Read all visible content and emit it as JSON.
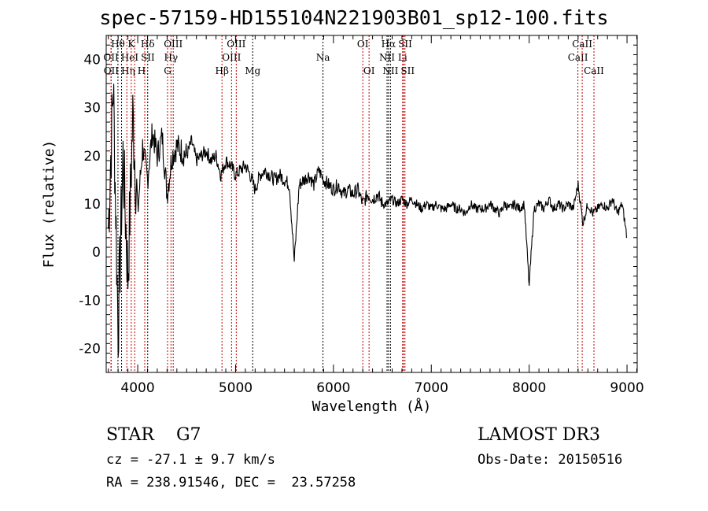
{
  "chart_data": {
    "type": "line",
    "title": "spec-57159-HD155104N221903B01_sp12-100.fits",
    "xlabel": "Wavelength (Å)",
    "ylabel": "Flux (relative)",
    "xlim": [
      3678,
      9104
    ],
    "ylim": [
      -25,
      45
    ],
    "xticks": [
      4000,
      5000,
      6000,
      7000,
      8000,
      9000
    ],
    "yticks": [
      -20,
      -10,
      0,
      10,
      20,
      30,
      40
    ],
    "grid": false,
    "series": [
      {
        "name": "spectrum",
        "x_start": 3700,
        "x_step": 50,
        "values": [
          5,
          35,
          -16,
          20,
          -5,
          28,
          8,
          22,
          15,
          25,
          20,
          24,
          12,
          20,
          22,
          21,
          20,
          23,
          19,
          20,
          21,
          19,
          20,
          16,
          19,
          18,
          16,
          17,
          18,
          16,
          13,
          16,
          17,
          16,
          15,
          16,
          15,
          14,
          -2,
          14,
          15,
          16,
          14,
          17,
          15,
          14,
          13,
          14,
          12,
          13,
          12,
          13,
          10,
          12,
          11,
          12,
          10,
          10,
          11,
          10,
          11,
          10,
          11,
          10,
          9,
          10,
          9,
          10,
          9,
          9,
          10,
          9,
          9,
          8,
          10,
          9,
          9,
          9,
          10,
          9,
          8,
          10,
          9,
          10,
          9,
          10,
          -7,
          9,
          10,
          9,
          11,
          9,
          10,
          9,
          10,
          9,
          14,
          6,
          10,
          8,
          9,
          10,
          9,
          11,
          8,
          10,
          3
        ]
      }
    ],
    "lines": [
      {
        "label": "OII",
        "wave": 3727,
        "row": 2,
        "color": "#c00000"
      },
      {
        "label": "OII",
        "wave": 3729,
        "row": 3,
        "color": "#c00000"
      },
      {
        "label": "Hθ",
        "wave": 3798,
        "row": 1,
        "color": "#000000"
      },
      {
        "label": "Hη",
        "wave": 3835,
        "row": 3,
        "color": "#000000"
      },
      {
        "label": "HeI",
        "wave": 3889,
        "row": 2,
        "color": "#c00000"
      },
      {
        "label": "K",
        "wave": 3934,
        "row": 1,
        "color": "#c00000"
      },
      {
        "label": "H",
        "wave": 3969,
        "row": 3,
        "color": "#c00000"
      },
      {
        "label": "SII",
        "wave": 4072,
        "row": 2,
        "color": "#c00000"
      },
      {
        "label": "Hδ",
        "wave": 4102,
        "row": 1,
        "color": "#000000"
      },
      {
        "label": "G",
        "wave": 4305,
        "row": 3,
        "color": "#c00000"
      },
      {
        "label": "Hγ",
        "wave": 4340,
        "row": 2,
        "color": "#c00000"
      },
      {
        "label": "OIII",
        "wave": 4363,
        "row": 1,
        "color": "#c00000"
      },
      {
        "label": "Hβ",
        "wave": 4861,
        "row": 3,
        "color": "#c00000"
      },
      {
        "label": "OIII",
        "wave": 4959,
        "row": 2,
        "color": "#c00000"
      },
      {
        "label": "OIII",
        "wave": 5007,
        "row": 1,
        "color": "#c00000"
      },
      {
        "label": "Mg",
        "wave": 5175,
        "row": 3,
        "color": "#000000"
      },
      {
        "label": "Na",
        "wave": 5893,
        "row": 2,
        "color": "#000000"
      },
      {
        "label": "OI",
        "wave": 6300,
        "row": 1,
        "color": "#c00000"
      },
      {
        "label": "OI",
        "wave": 6364,
        "row": 3,
        "color": "#c00000"
      },
      {
        "label": "NII",
        "wave": 6548,
        "row": 2,
        "color": "#000000"
      },
      {
        "label": "Hα",
        "wave": 6563,
        "row": 1,
        "color": "#000000"
      },
      {
        "label": "NII",
        "wave": 6583,
        "row": 3,
        "color": "#000000"
      },
      {
        "label": "Li",
        "wave": 6707,
        "row": 2,
        "color": "#c00000"
      },
      {
        "label": "SII",
        "wave": 6716,
        "row": 1,
        "color": "#c00000"
      },
      {
        "label": "SII",
        "wave": 6731,
        "row": 3,
        "color": "#c00000"
      },
      {
        "label": "CaII",
        "wave": 8498,
        "row": 2,
        "color": "#c00000"
      },
      {
        "label": "CaII",
        "wave": 8542,
        "row": 1,
        "color": "#c00000"
      },
      {
        "label": "CaII",
        "wave": 8662,
        "row": 3,
        "color": "#c00000"
      }
    ]
  },
  "info": {
    "class": "STAR    G7",
    "cz": "cz = -27.1 ± 9.7 km/s",
    "radec": "RA = 238.91546, DEC =  23.57258",
    "survey": "LAMOST DR3",
    "obsdate": "Obs-Date: 20150516"
  }
}
